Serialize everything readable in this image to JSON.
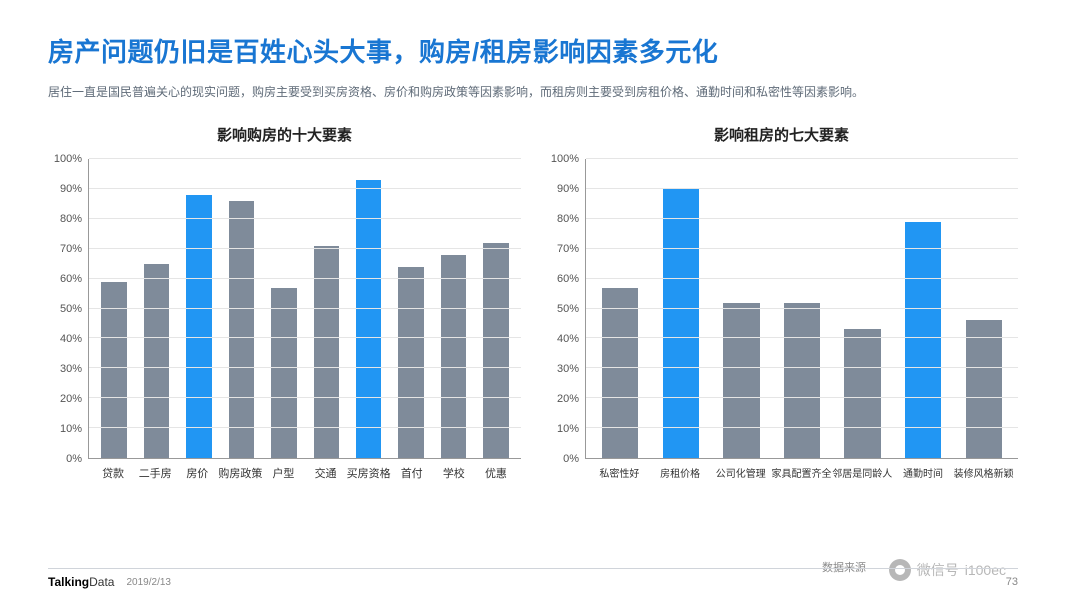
{
  "colors": {
    "title": "#1976d2",
    "bar_default": "#7f8b9a",
    "bar_highlight": "#2196f3",
    "grid": "#e5e5e5",
    "axis": "#999999",
    "text": "#333333",
    "subtext": "#5f6b78"
  },
  "title": "房产问题仍旧是百姓心头大事，购房/租房影响因素多元化",
  "subtitle": "居住一直是国民普遍关心的现实问题，购房主要受到买房资格、房价和购房政策等因素影响，而租房则主要受到房租价格、通勤时间和私密性等因素影响。",
  "axis": {
    "ymin": 0,
    "ymax": 100,
    "ystep": 10,
    "ysuffix": "%"
  },
  "chart_left": {
    "type": "bar",
    "title": "影响购房的十大要素",
    "categories": [
      "贷款",
      "二手房",
      "房价",
      "购房政策",
      "户型",
      "交通",
      "买房资格",
      "首付",
      "学校",
      "优惠"
    ],
    "values": [
      59,
      65,
      88,
      86,
      57,
      71,
      93,
      64,
      68,
      72
    ],
    "highlight_indices": [
      2,
      6
    ]
  },
  "chart_right": {
    "type": "bar",
    "title": "影响租房的七大要素",
    "categories": [
      "私密性好",
      "房租价格",
      "公司化管理",
      "家具配置齐全",
      "邻居是同龄人",
      "通勤时间",
      "装修风格新颖"
    ],
    "values": [
      57,
      90,
      52,
      52,
      43,
      79,
      46
    ],
    "highlight_indices": [
      1,
      5
    ]
  },
  "footer": {
    "brand_prefix": "Talking",
    "brand_suffix": "Data",
    "date": "2019/2/13",
    "source_prefix": "数据来源",
    "page": "73"
  },
  "watermark": {
    "label": "微信号",
    "id": "i100ec"
  }
}
